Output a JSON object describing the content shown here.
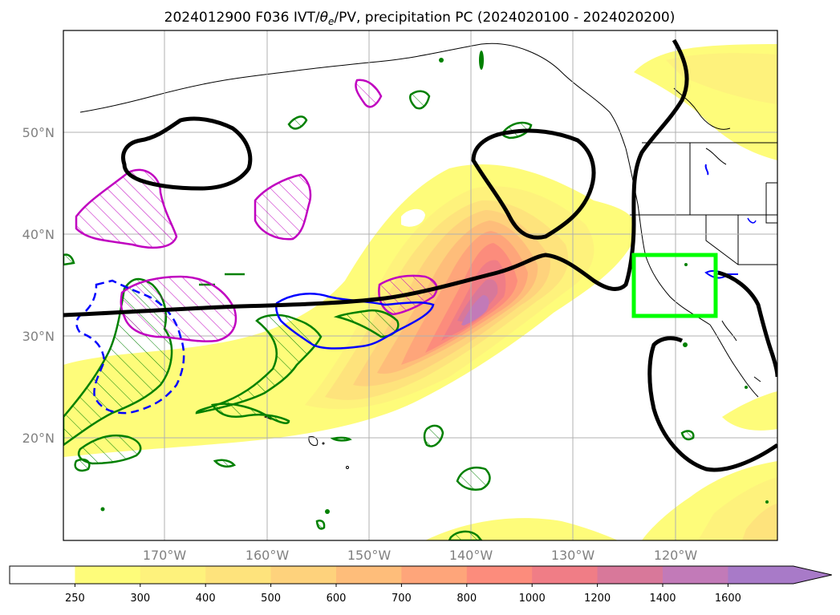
{
  "figure": {
    "title_parts": [
      "2024012900 F036 IVT/",
      "θ",
      "e",
      "/PV, precipitation PC (2024020100 - 2024020200)"
    ]
  },
  "map": {
    "lat_labels": [
      "50°N",
      "40°N",
      "30°N",
      "20°N"
    ],
    "lon_labels": [
      "170°W",
      "160°W",
      "150°W",
      "140°W",
      "130°W",
      "120°W"
    ],
    "grid": true
  },
  "colorbar": {
    "levels": [
      "250",
      "300",
      "400",
      "500",
      "600",
      "700",
      "800",
      "1000",
      "1200",
      "1400",
      "1600"
    ],
    "colors": [
      "#ffffff",
      "#fefc7a",
      "#fef27c",
      "#fee37c",
      "#fed27c",
      "#febd7a",
      "#fea57a",
      "#fc8c7c",
      "#f07d86",
      "#d8789a",
      "#c27ab8",
      "#a87ac8"
    ],
    "extend": "max"
  },
  "legend_colors": {
    "theta_e_contour": "#000000",
    "pv_hatched": "#c000c0",
    "pv_green": "#008000",
    "pv_blue": "#0000ff",
    "region_box": "#00ff00"
  }
}
